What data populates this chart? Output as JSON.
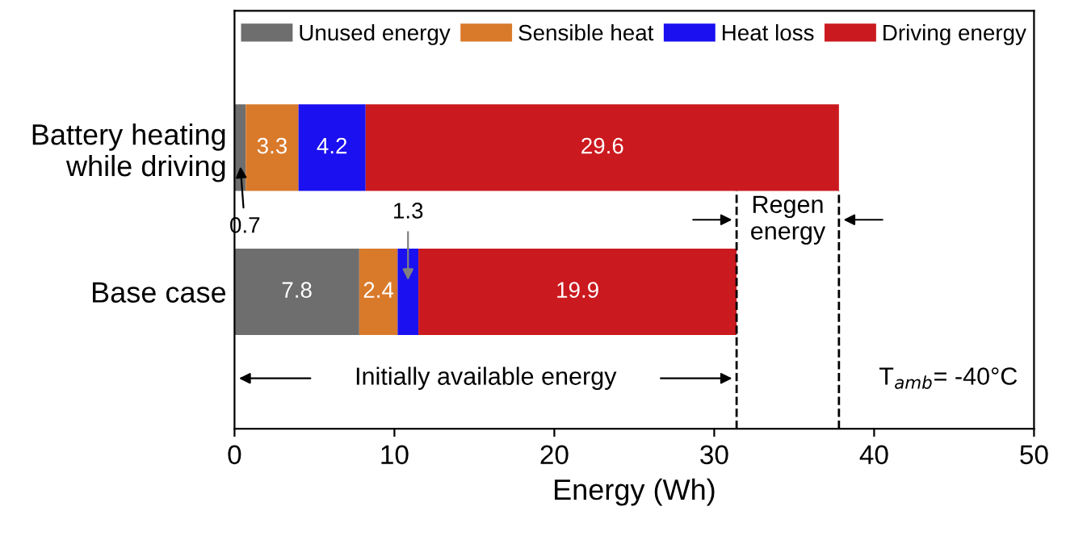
{
  "chart_data": {
    "type": "bar",
    "orientation": "horizontal",
    "stacked": true,
    "xlabel": "Energy (Wh)",
    "categories": [
      "Battery heating\nwhile driving",
      "Base case"
    ],
    "series": [
      {
        "name": "Unused energy",
        "color": "#6e6e6e",
        "values": [
          0.7,
          7.8
        ]
      },
      {
        "name": "Sensible heat",
        "color": "#d97a2b",
        "values": [
          3.3,
          2.4
        ]
      },
      {
        "name": "Heat loss",
        "color": "#1a10f0",
        "values": [
          4.2,
          1.3
        ]
      },
      {
        "name": "Driving energy",
        "color": "#cb1a1f",
        "values": [
          29.6,
          19.9
        ]
      }
    ],
    "xlim": [
      0,
      50
    ],
    "xticks": [
      0,
      10,
      20,
      30,
      40,
      50
    ],
    "grid": false,
    "legend": "top",
    "data_labels": true,
    "ref_lines": [
      {
        "axis": "x",
        "value": 31.4,
        "line_style": "dashed",
        "color": "#000000"
      },
      {
        "axis": "x",
        "value": 37.8,
        "line_style": "dashed",
        "color": "#000000"
      }
    ],
    "annotations": [
      "Initially available energy",
      "Regen energy",
      "T$_{amb}$= -40°C"
    ]
  }
}
